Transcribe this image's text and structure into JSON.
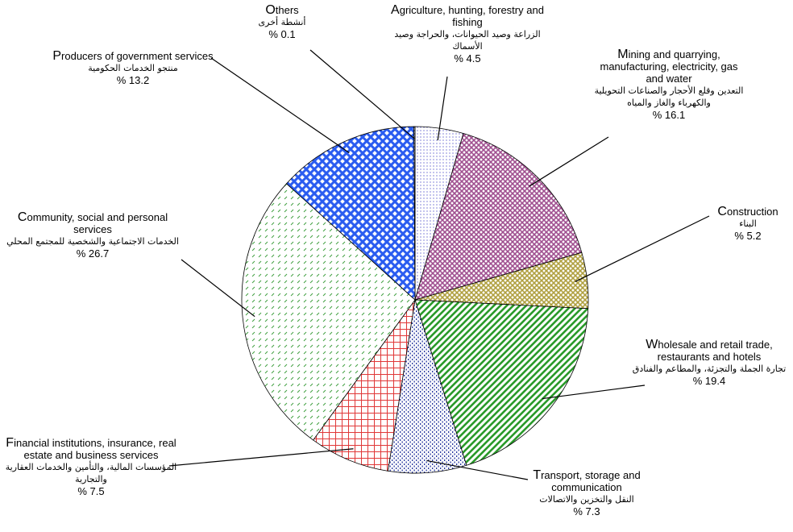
{
  "chart_data": {
    "type": "pie",
    "categories": [
      "Agriculture, hunting, forestry and fishing",
      "Mining and quarrying, manufacturing, electricity, gas and water",
      "Construction",
      "Wholesale and retail trade, restaurants and hotels",
      "Transport, storage and communication",
      "Financial institutions, insurance, real estate and business services",
      "Community, social and personal services",
      "Producers of government services",
      "Others"
    ],
    "labels_ar": [
      "الزراعة وصيد الحيوانات، والحراجة وصيد الأسماك",
      "التعدين وقلع الأحجار والصناعات التحويلية والكهرباء والغاز والمياه",
      "البناء",
      "تجارة الجملة والتجزئة، والمطاعم والفنادق",
      "النقل والتخزين والاتصالات",
      "المؤسسات المالية، والتأمين والخدمات العقارية والتجارية",
      "الخدمات الاجتماعية والشخصية للمجتمع المحلي",
      "منتجو الخدمات الحكومية",
      "أنشطة أخرى"
    ],
    "values": [
      4.5,
      16.1,
      5.2,
      19.4,
      7.3,
      7.5,
      26.7,
      13.2,
      0.1
    ],
    "value_labels": [
      "% 4.5",
      "% 16.1",
      "% 5.2",
      "% 19.4",
      "% 7.3",
      "% 7.5",
      "% 26.7",
      "% 13.2",
      "% 0.1"
    ],
    "colors": [
      "#9a9ae0",
      "#a05090",
      "#b0a040",
      "#2a9a2a",
      "#2838a0",
      "#e03838",
      "#40a040",
      "#2a5cf0",
      "#808080"
    ]
  }
}
